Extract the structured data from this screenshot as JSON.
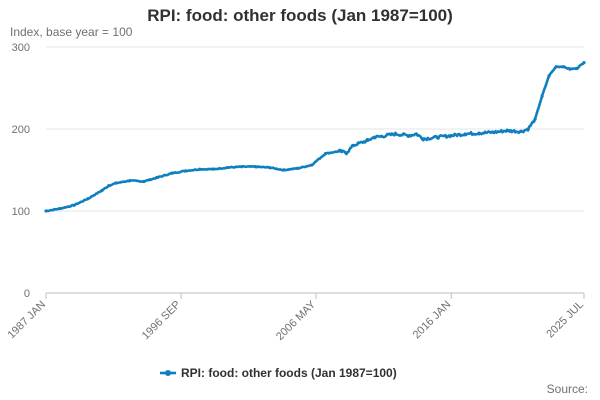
{
  "header": {
    "title": "RPI: food: other foods (Jan 1987=100)",
    "subtitle": "Index, base year = 100"
  },
  "footer": {
    "source_label": "Source:"
  },
  "colors": {
    "series": "#0f7fbf",
    "grid": "#e6e6e6",
    "axis": "#bfbfbf"
  },
  "chart_data": {
    "type": "line",
    "title": "RPI: food: other foods (Jan 1987=100)",
    "xlabel": "",
    "ylabel": "Index, base year = 100",
    "ylim": [
      0,
      300
    ],
    "yticks": [
      0,
      100,
      200,
      300
    ],
    "xlim": [
      1987.0,
      2025.5
    ],
    "xticks": [
      {
        "value": 1987.0,
        "label": "1987 JAN"
      },
      {
        "value": 1996.67,
        "label": "1996 SEP"
      },
      {
        "value": 2006.33,
        "label": "2006 MAY"
      },
      {
        "value": 2016.0,
        "label": "2016 JAN"
      },
      {
        "value": 2025.5,
        "label": "2025 JUL"
      }
    ],
    "legend": {
      "position": "bottom",
      "label": "RPI: food: other foods (Jan 1987=100)"
    },
    "series": [
      {
        "name": "RPI: food: other foods (Jan 1987=100)",
        "x": [
          1987.0,
          1988.0,
          1989.0,
          1990.0,
          1991.0,
          1991.5,
          1992.0,
          1993.0,
          1994.0,
          1995.0,
          1996.0,
          1997.0,
          1998.0,
          1999.0,
          2000.0,
          2001.0,
          2002.0,
          2003.0,
          2004.0,
          2005.0,
          2006.0,
          2007.0,
          2008.0,
          2008.5,
          2009.0,
          2010.0,
          2010.5,
          2011.0,
          2012.0,
          2013.0,
          2013.5,
          2014.0,
          2015.0,
          2016.0,
          2017.0,
          2018.0,
          2019.0,
          2020.0,
          2021.0,
          2021.5,
          2022.0,
          2022.5,
          2023.0,
          2023.5,
          2024.0,
          2024.5,
          2025.0,
          2025.5
        ],
        "values": [
          100,
          103,
          107,
          115,
          125,
          131,
          134,
          137,
          136,
          141,
          146,
          149,
          151,
          151,
          153,
          154,
          154,
          153,
          150,
          152,
          156,
          170,
          173,
          171,
          180,
          186,
          190,
          191,
          194,
          192,
          194,
          188,
          190,
          192,
          194,
          195,
          196,
          198,
          197,
          200,
          212,
          240,
          265,
          276,
          276,
          273,
          274,
          281
        ]
      }
    ]
  }
}
